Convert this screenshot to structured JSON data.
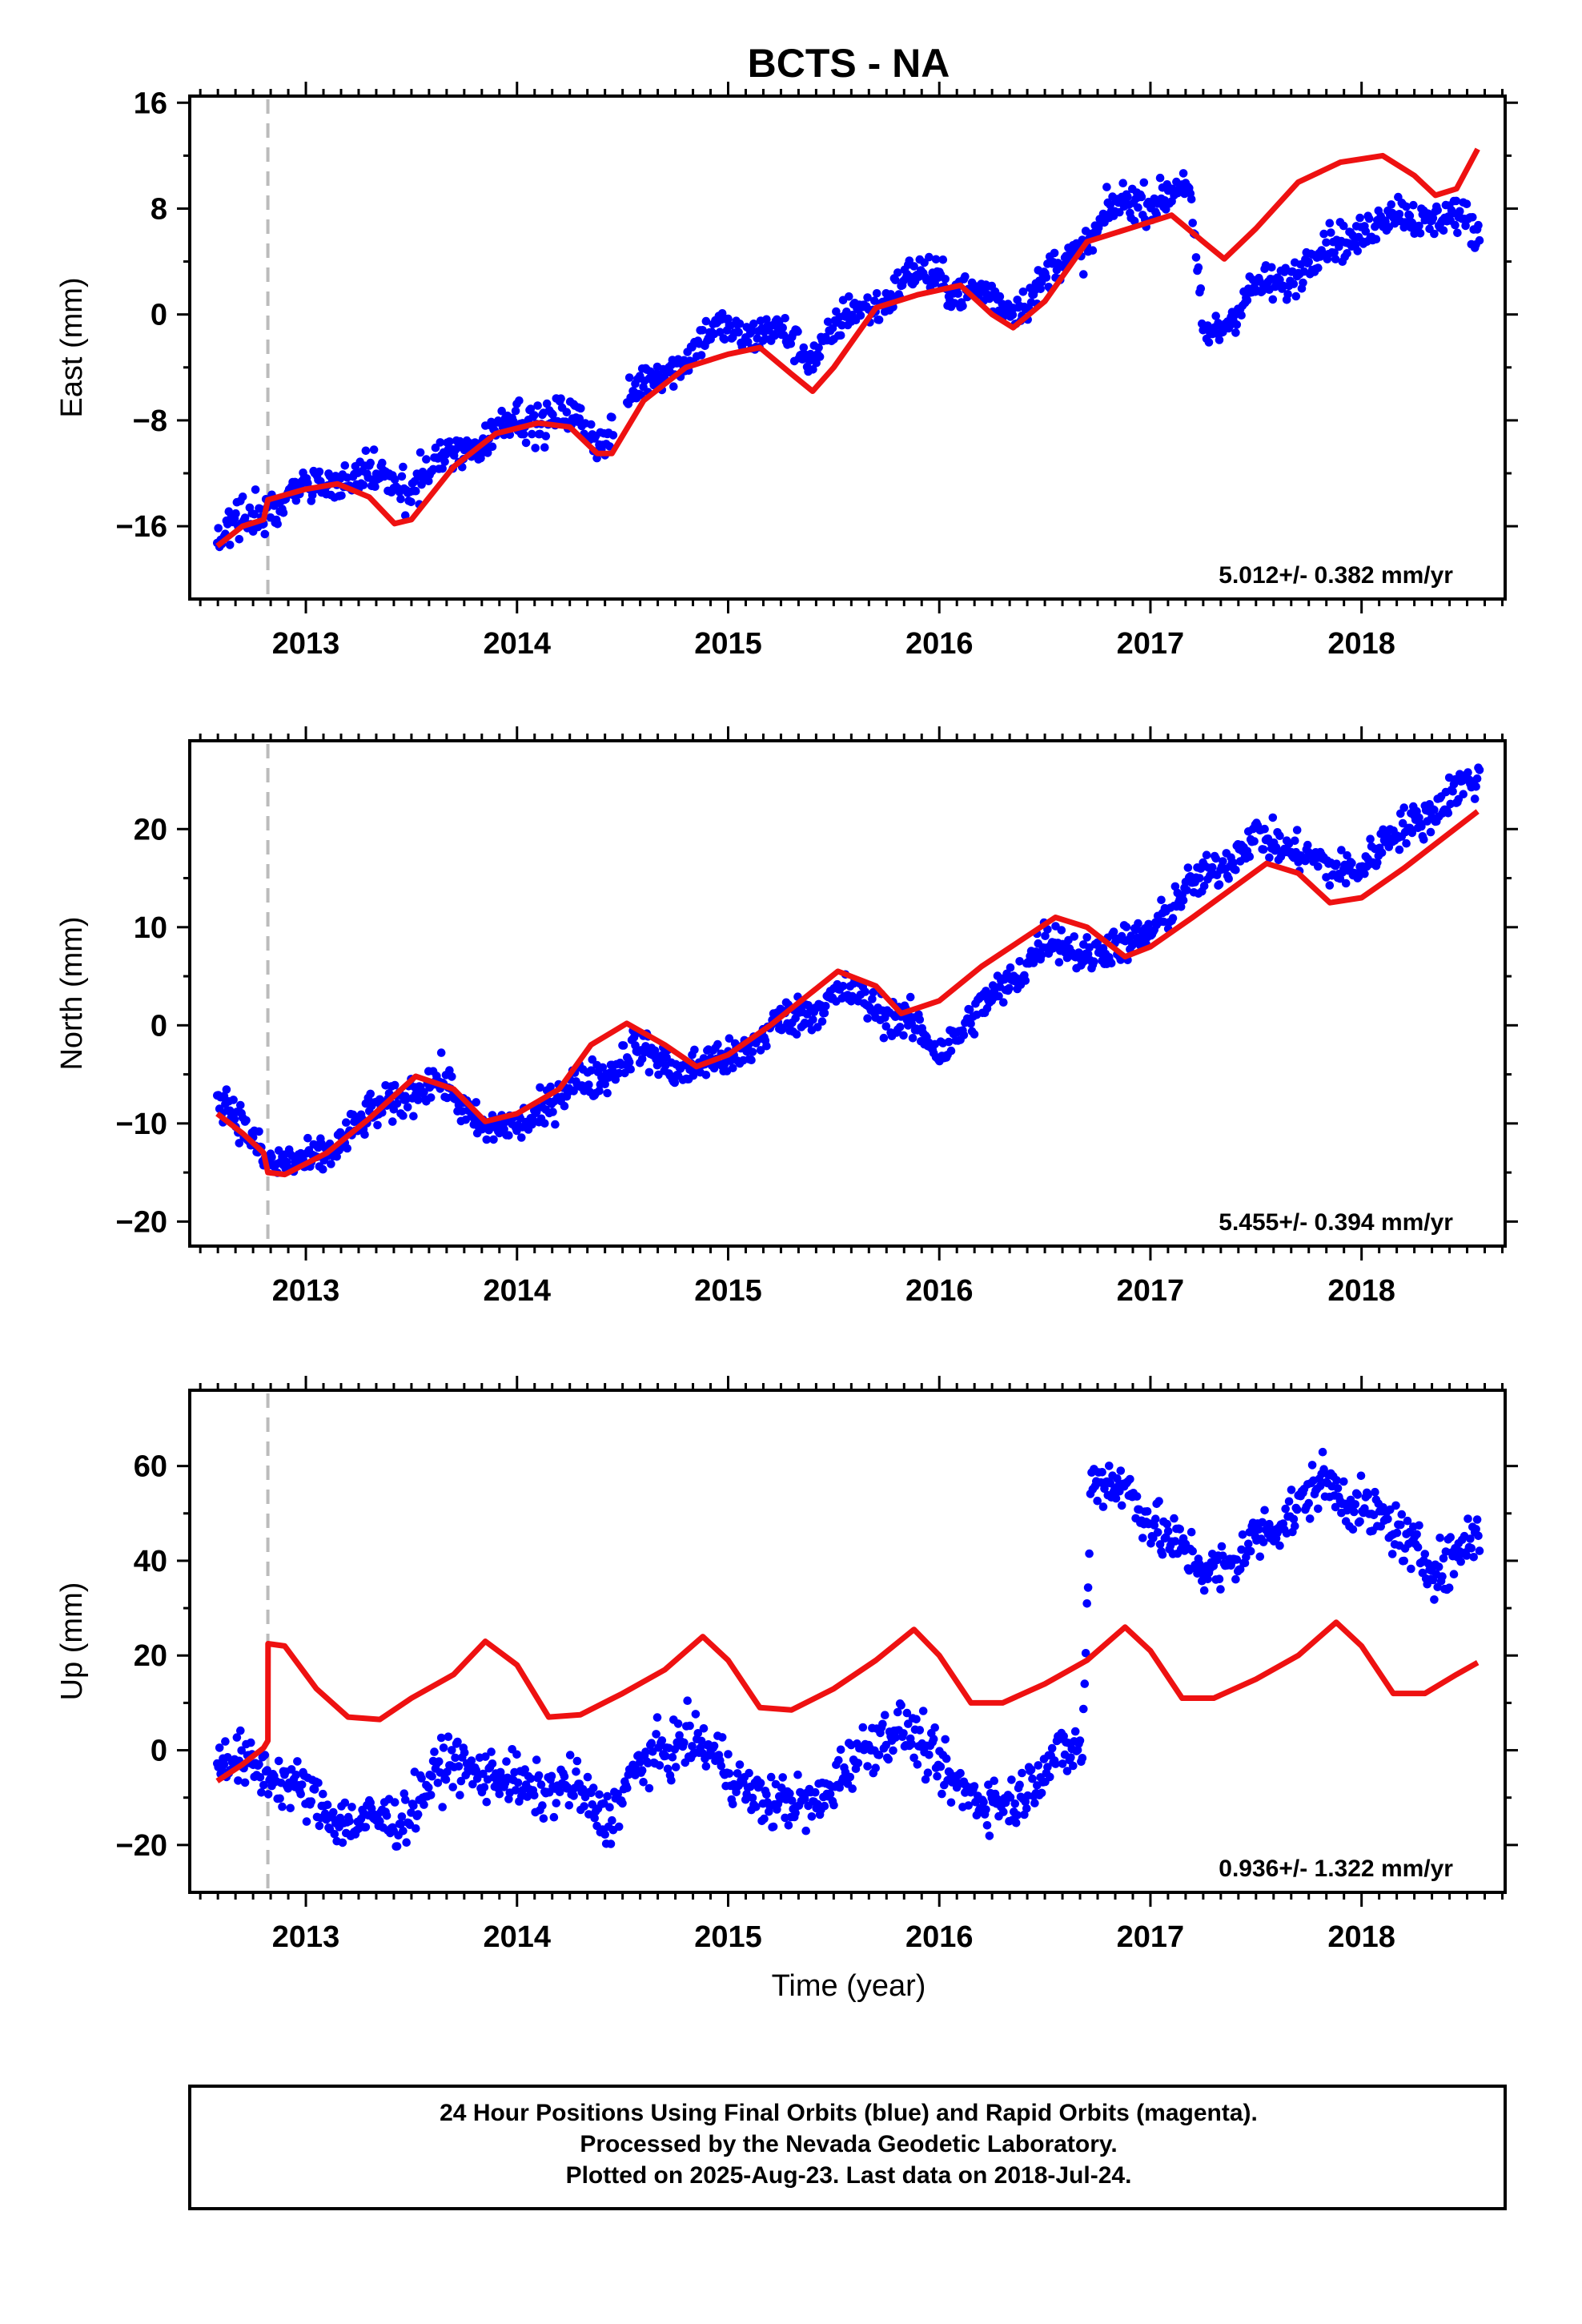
{
  "chart_data": [
    {
      "type": "scatter",
      "title": "BCTS - NA",
      "ylabel": "East (mm)",
      "xlabel": "",
      "xlim": [
        2012.45,
        2018.68
      ],
      "ylim": [
        -21.5,
        16.5
      ],
      "xticks": [
        2013,
        2014,
        2015,
        2016,
        2017,
        2018
      ],
      "yticks": [
        -16,
        -8,
        0,
        8,
        16
      ],
      "yticklabels": [
        "−16",
        "−8",
        "0",
        "8",
        "16"
      ],
      "grid": false,
      "event_line_x": 2012.82,
      "rate_text": "5.012+/- 0.382 mm/yr",
      "series": [
        {
          "kind": "points",
          "color": "#0000ff",
          "trend": [
            [
              2012.58,
              -17.0
            ],
            [
              2012.7,
              -15.5
            ],
            [
              2012.82,
              -14.5
            ],
            [
              2013.0,
              -13.0
            ],
            [
              2013.2,
              -12.3
            ],
            [
              2013.35,
              -12.5
            ],
            [
              2013.5,
              -13.0
            ],
            [
              2013.7,
              -10.5
            ],
            [
              2014.0,
              -8.0
            ],
            [
              2014.2,
              -7.6
            ],
            [
              2014.4,
              -9.5
            ],
            [
              2014.5,
              -7.0
            ],
            [
              2014.7,
              -4.0
            ],
            [
              2015.0,
              -1.0
            ],
            [
              2015.2,
              -1.5
            ],
            [
              2015.4,
              -2.8
            ],
            [
              2015.6,
              0.0
            ],
            [
              2015.85,
              2.5
            ],
            [
              2016.0,
              3.0
            ],
            [
              2016.15,
              1.5
            ],
            [
              2016.3,
              0.8
            ],
            [
              2016.45,
              1.5
            ],
            [
              2016.6,
              4.0
            ],
            [
              2016.8,
              7.5
            ],
            [
              2017.0,
              9.0
            ],
            [
              2017.18,
              9.5
            ],
            [
              2017.25,
              -1.5
            ],
            [
              2017.5,
              1.5
            ],
            [
              2017.8,
              4.5
            ],
            [
              2018.0,
              6.5
            ],
            [
              2018.2,
              7.5
            ],
            [
              2018.4,
              7.5
            ],
            [
              2018.55,
              6.0
            ]
          ],
          "amp": 1.2,
          "noise": 1.0
        },
        {
          "kind": "line",
          "color": "#ee1111",
          "fit": [
            [
              2012.58,
              -17.5
            ],
            [
              2012.7,
              -16.0
            ],
            [
              2012.8,
              -15.5
            ],
            [
              2012.82,
              -14.0
            ],
            [
              2013.0,
              -13.2
            ],
            [
              2013.15,
              -12.8
            ],
            [
              2013.3,
              -13.8
            ],
            [
              2013.42,
              -15.8
            ],
            [
              2013.5,
              -15.5
            ],
            [
              2013.7,
              -11.5
            ],
            [
              2013.9,
              -9.0
            ],
            [
              2014.1,
              -8.2
            ],
            [
              2014.25,
              -8.5
            ],
            [
              2014.38,
              -10.5
            ],
            [
              2014.45,
              -10.5
            ],
            [
              2014.6,
              -6.5
            ],
            [
              2014.8,
              -4.0
            ],
            [
              2015.0,
              -3.0
            ],
            [
              2015.15,
              -2.5
            ],
            [
              2015.3,
              -4.5
            ],
            [
              2015.4,
              -5.8
            ],
            [
              2015.5,
              -4.0
            ],
            [
              2015.7,
              0.5
            ],
            [
              2015.9,
              1.5
            ],
            [
              2016.1,
              2.2
            ],
            [
              2016.25,
              0.0
            ],
            [
              2016.35,
              -1.0
            ],
            [
              2016.5,
              1.0
            ],
            [
              2016.7,
              5.5
            ],
            [
              2016.9,
              6.5
            ],
            [
              2017.1,
              7.5
            ],
            [
              2017.25,
              5.5
            ],
            [
              2017.35,
              4.2
            ],
            [
              2017.5,
              6.5
            ],
            [
              2017.7,
              10.0
            ],
            [
              2017.9,
              11.5
            ],
            [
              2018.1,
              12.0
            ],
            [
              2018.25,
              10.5
            ],
            [
              2018.35,
              9.0
            ],
            [
              2018.45,
              9.5
            ],
            [
              2018.55,
              12.5
            ]
          ]
        }
      ]
    },
    {
      "type": "scatter",
      "title": "",
      "ylabel": "North (mm)",
      "xlabel": "",
      "xlim": [
        2012.45,
        2018.68
      ],
      "ylim": [
        -22.5,
        29
      ],
      "xticks": [
        2013,
        2014,
        2015,
        2016,
        2017,
        2018
      ],
      "yticks": [
        -20,
        -10,
        0,
        10,
        20
      ],
      "yticklabels": [
        "−20",
        "−10",
        "0",
        "10",
        "20"
      ],
      "grid": false,
      "event_line_x": 2012.82,
      "rate_text": "5.455+/- 0.394 mm/yr",
      "series": [
        {
          "kind": "points",
          "color": "#0000ff",
          "trend": [
            [
              2012.58,
              -7.0
            ],
            [
              2012.7,
              -10.5
            ],
            [
              2012.82,
              -13.5
            ],
            [
              2013.0,
              -14.5
            ],
            [
              2013.2,
              -11.0
            ],
            [
              2013.5,
              -6.5
            ],
            [
              2013.65,
              -6.0
            ],
            [
              2013.85,
              -10.5
            ],
            [
              2014.0,
              -10.5
            ],
            [
              2014.2,
              -7.0
            ],
            [
              2014.4,
              -5.0
            ],
            [
              2014.55,
              -2.5
            ],
            [
              2014.8,
              -4.5
            ],
            [
              2015.0,
              -3.5
            ],
            [
              2015.2,
              -0.5
            ],
            [
              2015.45,
              2.5
            ],
            [
              2015.6,
              3.0
            ],
            [
              2015.75,
              1.5
            ],
            [
              2015.85,
              0.0
            ],
            [
              2016.0,
              -2.5
            ],
            [
              2016.2,
              1.5
            ],
            [
              2016.5,
              8.5
            ],
            [
              2016.7,
              7.5
            ],
            [
              2016.9,
              8.0
            ],
            [
              2017.1,
              12.0
            ],
            [
              2017.3,
              16.0
            ],
            [
              2017.5,
              19.0
            ],
            [
              2017.7,
              18.0
            ],
            [
              2017.85,
              15.5
            ],
            [
              2018.0,
              16.5
            ],
            [
              2018.2,
              20.0
            ],
            [
              2018.4,
              23.0
            ],
            [
              2018.55,
              25.0
            ]
          ],
          "amp": 1.0,
          "noise": 1.4
        },
        {
          "kind": "line",
          "color": "#ee1111",
          "fit": [
            [
              2012.58,
              -9.0
            ],
            [
              2012.7,
              -11.0
            ],
            [
              2012.8,
              -13.0
            ],
            [
              2012.82,
              -15.0
            ],
            [
              2012.9,
              -15.2
            ],
            [
              2013.1,
              -13.0
            ],
            [
              2013.3,
              -9.5
            ],
            [
              2013.52,
              -5.2
            ],
            [
              2013.7,
              -6.5
            ],
            [
              2013.85,
              -9.8
            ],
            [
              2014.0,
              -9.0
            ],
            [
              2014.2,
              -6.5
            ],
            [
              2014.35,
              -2.0
            ],
            [
              2014.52,
              0.2
            ],
            [
              2014.7,
              -2.0
            ],
            [
              2014.85,
              -4.2
            ],
            [
              2015.0,
              -3.0
            ],
            [
              2015.2,
              0.0
            ],
            [
              2015.52,
              5.5
            ],
            [
              2015.7,
              4.0
            ],
            [
              2015.82,
              1.2
            ],
            [
              2016.0,
              2.5
            ],
            [
              2016.2,
              6.0
            ],
            [
              2016.55,
              11.0
            ],
            [
              2016.7,
              10.0
            ],
            [
              2016.88,
              7.0
            ],
            [
              2017.0,
              8.0
            ],
            [
              2017.2,
              11.0
            ],
            [
              2017.55,
              16.5
            ],
            [
              2017.7,
              15.5
            ],
            [
              2017.85,
              12.5
            ],
            [
              2018.0,
              13.0
            ],
            [
              2018.2,
              16.0
            ],
            [
              2018.55,
              21.8
            ]
          ]
        }
      ]
    },
    {
      "type": "scatter",
      "title": "",
      "ylabel": "Up (mm)",
      "xlabel": "Time (year)",
      "xlim": [
        2012.45,
        2018.68
      ],
      "ylim": [
        -30,
        76
      ],
      "xticks": [
        2013,
        2014,
        2015,
        2016,
        2017,
        2018
      ],
      "yticks": [
        -20,
        0,
        20,
        40,
        60
      ],
      "yticklabels": [
        "−20",
        "0",
        "20",
        "40",
        "60"
      ],
      "grid": false,
      "event_line_x": 2012.82,
      "rate_text": "0.936+/- 1.322 mm/yr",
      "series": [
        {
          "kind": "points",
          "color": "#0000ff",
          "trend": [
            [
              2012.58,
              -2.0
            ],
            [
              2012.82,
              -4.0
            ],
            [
              2013.0,
              -10.0
            ],
            [
              2013.25,
              -16.0
            ],
            [
              2013.45,
              -14.0
            ],
            [
              2013.7,
              -2.0
            ],
            [
              2013.85,
              -5.0
            ],
            [
              2014.05,
              -8.0
            ],
            [
              2014.25,
              -8.0
            ],
            [
              2014.42,
              -14.0
            ],
            [
              2014.58,
              -4.0
            ],
            [
              2014.8,
              3.0
            ],
            [
              2015.0,
              -4.0
            ],
            [
              2015.2,
              -12.0
            ],
            [
              2015.45,
              -10.0
            ],
            [
              2015.7,
              3.0
            ],
            [
              2015.8,
              5.0
            ],
            [
              2016.05,
              -5.0
            ],
            [
              2016.2,
              -12.0
            ],
            [
              2016.35,
              -10.0
            ],
            [
              2016.5,
              -4.0
            ],
            [
              2016.68,
              2.0
            ],
            [
              2016.72,
              58.0
            ],
            [
              2016.9,
              54.0
            ],
            [
              2017.1,
              44.0
            ],
            [
              2017.25,
              38.0
            ],
            [
              2017.4,
              40.0
            ],
            [
              2017.6,
              48.0
            ],
            [
              2017.8,
              56.0
            ],
            [
              2018.0,
              52.0
            ],
            [
              2018.2,
              44.0
            ],
            [
              2018.4,
              38.0
            ],
            [
              2018.55,
              46.0
            ]
          ],
          "amp": 2.0,
          "noise": 4.0
        },
        {
          "kind": "line",
          "color": "#ee1111",
          "fit": [
            [
              2012.58,
              -6.5
            ],
            [
              2012.7,
              -3.0
            ],
            [
              2012.8,
              0.5
            ],
            [
              2012.82,
              2.0
            ],
            [
              2012.821,
              22.5
            ],
            [
              2012.9,
              22.0
            ],
            [
              2013.05,
              13.0
            ],
            [
              2013.2,
              7.0
            ],
            [
              2013.35,
              6.5
            ],
            [
              2013.5,
              11.0
            ],
            [
              2013.7,
              16.0
            ],
            [
              2013.85,
              23.0
            ],
            [
              2014.0,
              18.0
            ],
            [
              2014.15,
              7.0
            ],
            [
              2014.3,
              7.5
            ],
            [
              2014.5,
              12.0
            ],
            [
              2014.7,
              17.0
            ],
            [
              2014.88,
              24.0
            ],
            [
              2015.0,
              19.0
            ],
            [
              2015.15,
              9.0
            ],
            [
              2015.3,
              8.5
            ],
            [
              2015.5,
              13.0
            ],
            [
              2015.7,
              19.0
            ],
            [
              2015.88,
              25.5
            ],
            [
              2016.0,
              20.0
            ],
            [
              2016.15,
              10.0
            ],
            [
              2016.3,
              10.0
            ],
            [
              2016.5,
              14.0
            ],
            [
              2016.7,
              19.0
            ],
            [
              2016.88,
              26.0
            ],
            [
              2017.0,
              21.0
            ],
            [
              2017.15,
              11.0
            ],
            [
              2017.3,
              11.0
            ],
            [
              2017.5,
              15.0
            ],
            [
              2017.7,
              20.0
            ],
            [
              2017.88,
              27.0
            ],
            [
              2018.0,
              22.0
            ],
            [
              2018.15,
              12.0
            ],
            [
              2018.3,
              12.0
            ],
            [
              2018.45,
              16.0
            ],
            [
              2018.55,
              18.5
            ]
          ]
        }
      ]
    }
  ],
  "footer": {
    "line1": "24 Hour Positions Using Final Orbits (blue) and Rapid Orbits (magenta).",
    "line2": "Processed by the Nevada Geodetic Laboratory.",
    "line3": "Plotted on 2025-Aug-23. Last data on 2018-Jul-24."
  }
}
